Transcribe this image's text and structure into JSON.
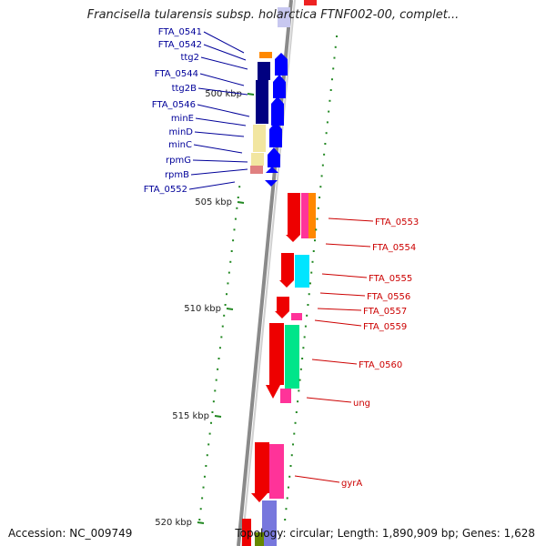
{
  "title": "Francisella tularensis subsp. holarctica FTNF002-00, complet...",
  "accession": "Accession: NC_009749",
  "topology": "Topology: circular; Length: 1,890,909 bp; Genes: 1,628",
  "colors": {
    "left_label": "#000099",
    "right_label": "#cc0000",
    "ruler_tick": "#228822",
    "backbone": "#888888"
  },
  "kbp_ticks": [
    {
      "label": "500 kbp",
      "pos": 500
    },
    {
      "label": "505 kbp",
      "pos": 505
    },
    {
      "label": "510 kbp",
      "pos": 510
    },
    {
      "label": "515 kbp",
      "pos": 515
    },
    {
      "label": "520 kbp",
      "pos": 520
    }
  ],
  "left_genes": [
    {
      "label": "FTA_0541"
    },
    {
      "label": "FTA_0542"
    },
    {
      "label": "ttg2"
    },
    {
      "label": "FTA_0544"
    },
    {
      "label": "ttg2B"
    },
    {
      "label": "FTA_0546"
    },
    {
      "label": "minE"
    },
    {
      "label": "minD"
    },
    {
      "label": "minC"
    },
    {
      "label": "rpmG"
    },
    {
      "label": "rpmB"
    },
    {
      "label": "FTA_0552"
    }
  ],
  "right_genes": [
    {
      "label": "FTA_0553"
    },
    {
      "label": "FTA_0554"
    },
    {
      "label": "FTA_0555"
    },
    {
      "label": "FTA_0556"
    },
    {
      "label": "FTA_0557"
    },
    {
      "label": "FTA_0559"
    },
    {
      "label": "FTA_0560"
    },
    {
      "label": "ung"
    },
    {
      "label": "gyrA"
    }
  ]
}
